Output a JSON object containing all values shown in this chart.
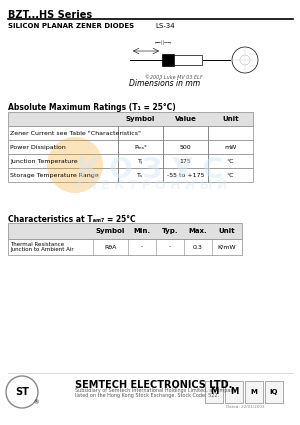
{
  "title": "BZT...HS Series",
  "subtitle": "SILICON PLANAR ZENER DIODES",
  "package": "LS-34",
  "dimensions_label": "Dimensions in mm",
  "section1_title": "Absolute Maximum Ratings (T₁ = 25°C)",
  "table1_headers": [
    "",
    "Symbol",
    "Value",
    "Unit"
  ],
  "table1_rows": [
    [
      "Zener Current see Table \"Characteristics\"",
      "",
      "",
      ""
    ],
    [
      "Power Dissipation",
      "Pₘₐˣ",
      "500",
      "mW"
    ],
    [
      "Junction Temperature",
      "Tⱼ",
      "175",
      "°C"
    ],
    [
      "Storage Temperature Range",
      "Tₛ",
      "-55 to +175",
      "°C"
    ]
  ],
  "section2_title": "Characteristics at Tₐₘ₇ = 25°C",
  "table2_headers": [
    "",
    "Symbol",
    "Min.",
    "Typ.",
    "Max.",
    "Unit"
  ],
  "table2_rows": [
    [
      "Thermal Resistance\nJunction to Ambient Air",
      "RθA",
      "-",
      "-",
      "0.3",
      "K/mW"
    ]
  ],
  "footer_company": "SEMTECH ELECTRONICS LTD.",
  "footer_sub1": "Subsidiary of Semtech International Holdings Limited, a company",
  "footer_sub2": "listed on the Hong Kong Stock Exchange. Stock Code: 522.",
  "bg_color": "#ffffff",
  "text_color": "#000000",
  "table_header_bg": "#e8e8e8",
  "table_border_color": "#888888",
  "watermark_colors": [
    "#f5a623",
    "#7ed321",
    "#4a90e2"
  ],
  "date_text": "Dated: 22/01/2003"
}
